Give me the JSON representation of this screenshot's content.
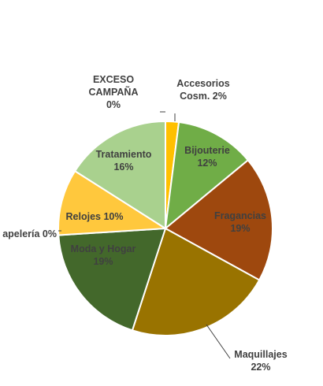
{
  "chart_data": {
    "type": "pie",
    "title": "",
    "slices": [
      {
        "label": "Accesorios Cosm.",
        "value": 2,
        "pct_label": "2%",
        "color": "#FFC000",
        "label_lines": [
          "Accesorios",
          "Cosm. 2%"
        ]
      },
      {
        "label": "Bijouterie",
        "value": 12,
        "pct_label": "12%",
        "color": "#70AD47",
        "label_lines": [
          "Bijouterie",
          "12%"
        ]
      },
      {
        "label": "Fragancias",
        "value": 19,
        "pct_label": "19%",
        "color": "#9E480E",
        "label_lines": [
          "Fragancias",
          "19%"
        ]
      },
      {
        "label": "Maquillajes",
        "value": 22,
        "pct_label": "22%",
        "color": "#997300",
        "label_lines": [
          "Maquillajes",
          "22%"
        ]
      },
      {
        "label": "Moda y Hogar",
        "value": 19,
        "pct_label": "19%",
        "color": "#43682B",
        "label_lines": [
          "Moda y Hogar",
          "19%"
        ]
      },
      {
        "label": "Papelería",
        "value": 0,
        "pct_label": "0%",
        "color": "#2F5597",
        "label_lines": [
          "apelería 0%"
        ]
      },
      {
        "label": "Relojes",
        "value": 10,
        "pct_label": "10%",
        "color": "#FFC83D",
        "label_lines": [
          "Relojes 10%"
        ]
      },
      {
        "label": "Tratamiento",
        "value": 16,
        "pct_label": "16%",
        "color": "#A9D18E",
        "label_lines": [
          "Tratamiento",
          "16%"
        ]
      },
      {
        "label": "EXCESO CAMPAÑA",
        "value": 0,
        "pct_label": "0%",
        "color": "#264478",
        "label_lines": [
          "EXCESO",
          "CAMPAÑA",
          "0%"
        ]
      }
    ],
    "label_colors": {
      "dark": "#404040",
      "light_on_dark": "#404040"
    }
  }
}
